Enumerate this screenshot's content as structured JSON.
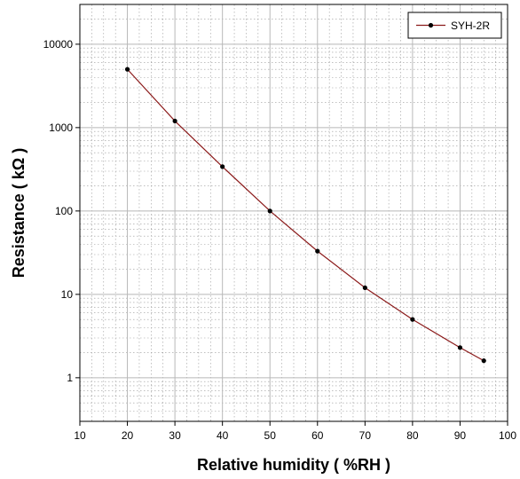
{
  "chart_data": {
    "type": "line",
    "title": "",
    "xlabel": "Relative humidity ( %RH )",
    "ylabel": "Resistance ( kΩ )",
    "xlim": [
      10,
      100
    ],
    "ylim": [
      0.3,
      30000
    ],
    "yscale": "log",
    "grid": true,
    "legend_position": "top-right",
    "x_ticks": [
      "10",
      "20",
      "30",
      "40",
      "50",
      "60",
      "70",
      "80",
      "90",
      "100"
    ],
    "y_ticks": [
      "1",
      "10",
      "100",
      "1000",
      "10000"
    ],
    "series": [
      {
        "name": "SYH-2R",
        "color": "#8b1a1a",
        "marker_color": "#000000",
        "x": [
          20,
          30,
          40,
          50,
          60,
          70,
          80,
          90,
          95
        ],
        "y": [
          5000,
          1200,
          340,
          100,
          33,
          12,
          5,
          2.3,
          1.6
        ]
      }
    ]
  }
}
